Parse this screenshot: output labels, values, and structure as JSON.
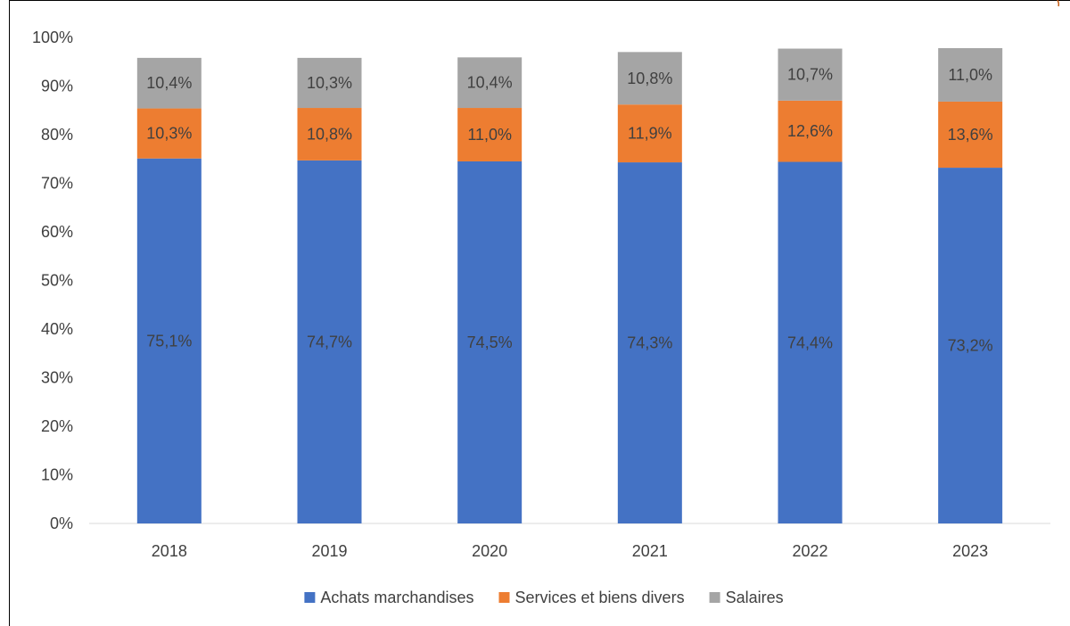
{
  "chart_data": {
    "type": "bar",
    "stacked": true,
    "title": "",
    "xlabel": "",
    "ylabel": "",
    "categories": [
      "2018",
      "2019",
      "2020",
      "2021",
      "2022",
      "2023"
    ],
    "ylim": [
      0,
      100
    ],
    "y_ticks": [
      "0%",
      "10%",
      "20%",
      "30%",
      "40%",
      "50%",
      "60%",
      "70%",
      "80%",
      "90%",
      "100%"
    ],
    "grid": false,
    "legend_position": "bottom",
    "series": [
      {
        "name": "Achats marchandises",
        "color": "#4472c4",
        "values": [
          75.1,
          74.7,
          74.5,
          74.3,
          74.4,
          73.2
        ],
        "labels": [
          "75,1%",
          "74,7%",
          "74,5%",
          "74,3%",
          "74,4%",
          "73,2%"
        ]
      },
      {
        "name": "Services et biens divers",
        "color": "#ed7d31",
        "values": [
          10.3,
          10.8,
          11.0,
          11.9,
          12.6,
          13.6
        ],
        "labels": [
          "10,3%",
          "10,8%",
          "11,0%",
          "11,9%",
          "12,6%",
          "13,6%"
        ]
      },
      {
        "name": "Salaires",
        "color": "#a5a5a5",
        "values": [
          10.4,
          10.3,
          10.4,
          10.8,
          10.7,
          11.0
        ],
        "labels": [
          "10,4%",
          "10,3%",
          "10,4%",
          "10,8%",
          "10,7%",
          "11,0%"
        ]
      }
    ]
  }
}
